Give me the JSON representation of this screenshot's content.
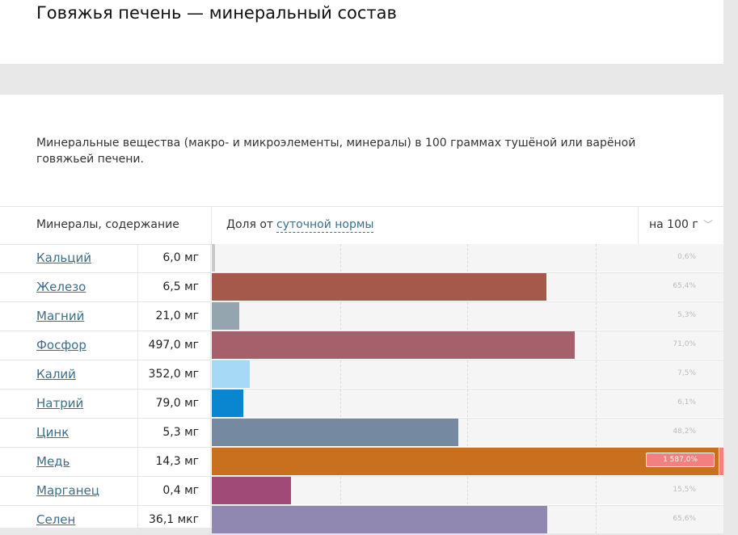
{
  "page": {
    "title": "Говяжья печень — минеральный состав",
    "description": "Минеральные вещества (макро- и микроэлементы, минералы) в 100 граммах тушёной или варёной говяжьей печени."
  },
  "table": {
    "header": {
      "name_col": "Минералы, содержание",
      "share_prefix": "Доля от",
      "share_link": "суточной нормы",
      "per_select": "на 100 г",
      "chevron_icon": "chevron-down-icon"
    },
    "rows": [
      {
        "name": "Кальций",
        "amount": "6,0 мг",
        "percent_label": "0,6%",
        "percent": 0.6,
        "color": "#c8c8c8"
      },
      {
        "name": "Железо",
        "amount": "6,5 мг",
        "percent_label": "65,4%",
        "percent": 65.4,
        "color": "#a5594a"
      },
      {
        "name": "Магний",
        "amount": "21,0 мг",
        "percent_label": "5,3%",
        "percent": 5.3,
        "color": "#95a5b0"
      },
      {
        "name": "Фосфор",
        "amount": "497,0 мг",
        "percent_label": "71,0%",
        "percent": 71.0,
        "color": "#a5606c"
      },
      {
        "name": "Калий",
        "amount": "352,0 мг",
        "percent_label": "7,5%",
        "percent": 7.5,
        "color": "#a5d9f5"
      },
      {
        "name": "Натрий",
        "amount": "79,0 мг",
        "percent_label": "6,1%",
        "percent": 6.1,
        "color": "#0a86d0"
      },
      {
        "name": "Цинк",
        "amount": "5,3 мг",
        "percent_label": "48,2%",
        "percent": 48.2,
        "color": "#7589a0"
      },
      {
        "name": "Медь",
        "amount": "14,3 мг",
        "percent_label": "1 587,0%",
        "percent": 1587.0,
        "color": "#c8701e"
      },
      {
        "name": "Марганец",
        "amount": "0,4 мг",
        "percent_label": "15,5%",
        "percent": 15.5,
        "color": "#a04a78"
      },
      {
        "name": "Селен",
        "amount": "36,1 мкг",
        "percent_label": "65,6%",
        "percent": 65.6,
        "color": "#9088b0"
      }
    ]
  }
}
